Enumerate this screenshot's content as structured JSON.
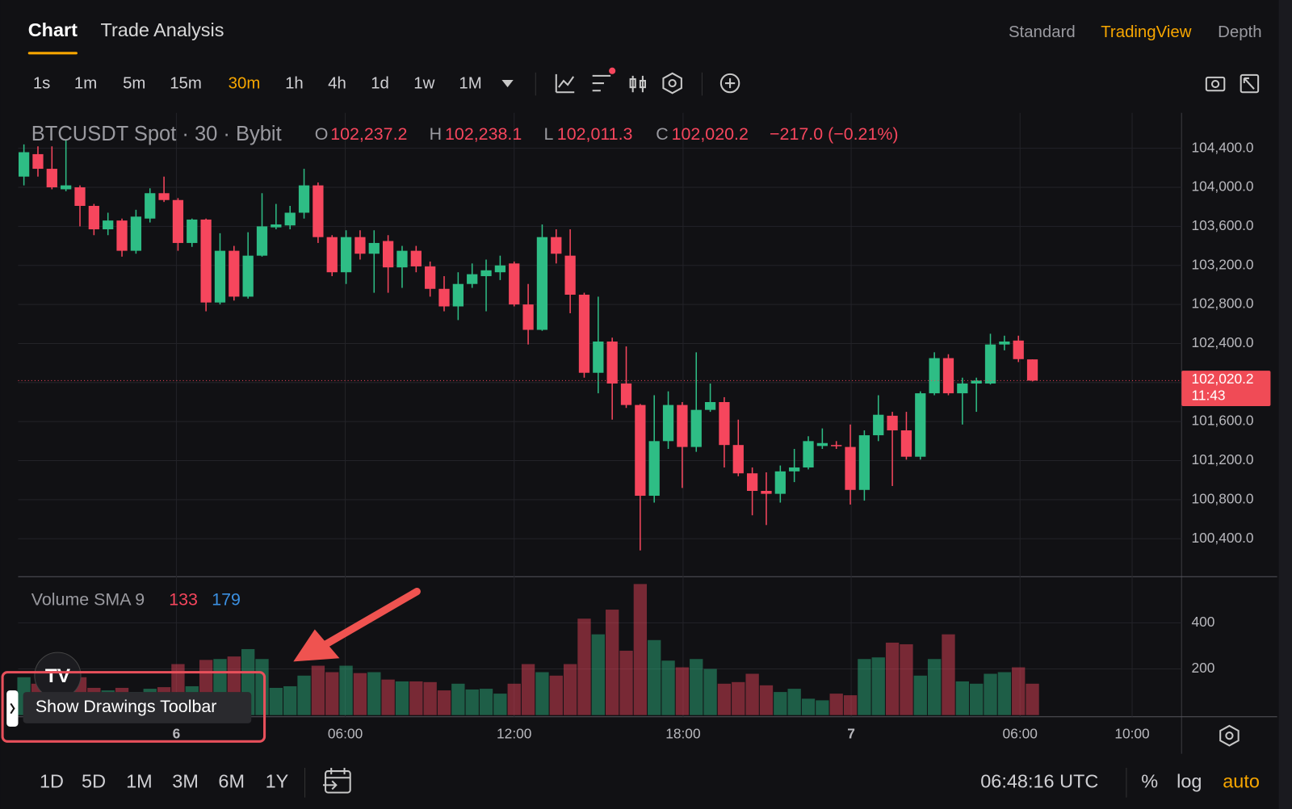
{
  "tabs": [
    "Chart",
    "Trade Analysis"
  ],
  "active_tab": 0,
  "views": [
    "Standard",
    "TradingView",
    "Depth"
  ],
  "active_view": 1,
  "intervals": [
    "1s",
    "1m",
    "5m",
    "15m",
    "30m",
    "1h",
    "4h",
    "1d",
    "1w",
    "1M"
  ],
  "active_interval": 4,
  "ranges": [
    "1D",
    "5D",
    "1M",
    "3M",
    "6M",
    "1Y"
  ],
  "clock": "06:48:16 UTC",
  "scale_options": [
    "%",
    "log",
    "auto"
  ],
  "active_scale_option": 2,
  "tooltip": "Show Drawings Toolbar",
  "logo": "TV",
  "chart_data": {
    "type": "candlestick",
    "title": "BTCUSDT Spot · 30 · Bybit",
    "ohlc_legend": [
      {
        "key": "O",
        "value": "102,237.2"
      },
      {
        "key": "H",
        "value": "102,238.1"
      },
      {
        "key": "L",
        "value": "102,011.3"
      },
      {
        "key": "C",
        "value": "102,020.2"
      }
    ],
    "change": "−217.0 (−0.21%)",
    "up_color": "#2ebd85",
    "down_color": "#f6465d",
    "open": [
      104110,
      104340,
      104190,
      103980,
      104000,
      103810,
      103570,
      103660,
      103350,
      103680,
      103940,
      103870,
      103430,
      103670,
      102820,
      103350,
      102880,
      103300,
      103590,
      103610,
      103740,
      104020,
      103490,
      103130,
      103490,
      103320,
      103450,
      103180,
      103350,
      103190,
      102960,
      102780,
      103010,
      103090,
      103130,
      103220,
      102800,
      102540,
      103490,
      103300,
      102900,
      102100,
      102420,
      101990,
      101770,
      100840,
      101400,
      101770,
      101340,
      101720,
      101800,
      101360,
      101070,
      100890,
      100860,
      101090,
      101130,
      101350,
      101360,
      101340,
      100900,
      101460,
      101660,
      101510,
      101240,
      101890,
      102250,
      101890,
      101990,
      101990,
      102390,
      102430,
      102237.2
    ],
    "high": [
      104440,
      104420,
      104420,
      104480,
      104020,
      103830,
      103740,
      103680,
      103770,
      103990,
      104110,
      103890,
      103680,
      103680,
      103530,
      103400,
      103540,
      103940,
      103830,
      103810,
      104190,
      104050,
      103510,
      103560,
      103560,
      103560,
      103510,
      103400,
      103400,
      103240,
      103090,
      103130,
      103220,
      103260,
      103300,
      103240,
      103010,
      103620,
      103570,
      103570,
      102920,
      102880,
      102460,
      102370,
      101780,
      101870,
      101910,
      101800,
      102310,
      101990,
      101850,
      101620,
      101130,
      101080,
      101150,
      101320,
      101450,
      101530,
      101400,
      101570,
      101510,
      101870,
      101700,
      101700,
      101910,
      102310,
      102290,
      102050,
      102050,
      102500,
      102480,
      102480,
      102238.1
    ],
    "low": [
      104020,
      104110,
      103980,
      103960,
      103600,
      103510,
      103510,
      103290,
      103320,
      103640,
      103850,
      103350,
      103390,
      102730,
      102800,
      102840,
      102860,
      103290,
      103570,
      103570,
      103680,
      103430,
      103090,
      103010,
      103260,
      102920,
      102920,
      102970,
      103130,
      102880,
      102730,
      102640,
      102970,
      102730,
      103050,
      102780,
      102390,
      102530,
      103220,
      102710,
      102050,
      101890,
      101620,
      101740,
      100280,
      100770,
      101320,
      100920,
      101290,
      101700,
      101130,
      101040,
      100640,
      100540,
      100770,
      100980,
      101110,
      101320,
      101320,
      100750,
      100790,
      101400,
      100940,
      101210,
      101210,
      101870,
      101870,
      101570,
      101700,
      101980,
      102330,
      102210,
      102011.3
    ],
    "close": [
      104360,
      104190,
      104000,
      104020,
      103810,
      103570,
      103660,
      103350,
      103700,
      103940,
      103870,
      103430,
      103670,
      102820,
      103350,
      102880,
      103300,
      103600,
      103620,
      103740,
      104020,
      103490,
      103130,
      103490,
      103320,
      103430,
      103180,
      103350,
      103190,
      102960,
      102780,
      103010,
      103110,
      103150,
      103200,
      102800,
      102540,
      103490,
      103320,
      102900,
      102100,
      102420,
      101990,
      101770,
      100840,
      101400,
      101770,
      101340,
      101720,
      101800,
      101360,
      101070,
      100890,
      100860,
      101090,
      101130,
      101400,
      101380,
      101350,
      100900,
      101460,
      101670,
      101510,
      101240,
      101890,
      102250,
      101890,
      101990,
      102020,
      102390,
      102420,
      102240,
      102020.2
    ],
    "ylim": [
      100011,
      104763
    ],
    "yticks": [
      {
        "value": 104400,
        "label": "104,400.0"
      },
      {
        "value": 104000,
        "label": "104,000.0"
      },
      {
        "value": 103600,
        "label": "103,600.0"
      },
      {
        "value": 103200,
        "label": "103,200.0"
      },
      {
        "value": 102800,
        "label": "102,800.0"
      },
      {
        "value": 102400,
        "label": "102,400.0"
      },
      {
        "value": 102000,
        "label": "102,000.0"
      },
      {
        "value": 101600,
        "label": "101,600.0"
      },
      {
        "value": 101200,
        "label": "101,200.0"
      },
      {
        "value": 100800,
        "label": "100,800.0"
      },
      {
        "value": 100400,
        "label": "100,400.0"
      }
    ],
    "last_price": {
      "value": 102020.2,
      "label": "102,020.2"
    },
    "countdown": "11:43",
    "x_labels": [
      "6",
      "06:00",
      "12:00",
      "18:00",
      "7",
      "06:00",
      "10:00"
    ],
    "volume": {
      "name": "Volume SMA 9",
      "values": [
        164,
        136,
        161,
        171,
        164,
        118,
        107,
        118,
        100,
        114,
        121,
        221,
        125,
        239,
        243,
        254,
        286,
        243,
        118,
        125,
        171,
        214,
        186,
        214,
        182,
        186,
        154,
        146,
        146,
        143,
        107,
        136,
        111,
        114,
        93,
        136,
        221,
        186,
        171,
        221,
        418,
        350,
        457,
        279,
        568,
        325,
        236,
        207,
        243,
        200,
        136,
        143,
        179,
        129,
        100,
        114,
        71,
        64,
        93,
        86,
        243,
        250,
        314,
        307,
        171,
        243,
        350,
        146,
        136,
        179,
        186,
        207,
        136
      ],
      "ylim": [
        0,
        582
      ],
      "yticks": [
        400,
        200
      ],
      "legend_values": [
        133,
        179
      ],
      "legend_colors": [
        "#f6465d",
        "#3b8fe0"
      ]
    }
  }
}
